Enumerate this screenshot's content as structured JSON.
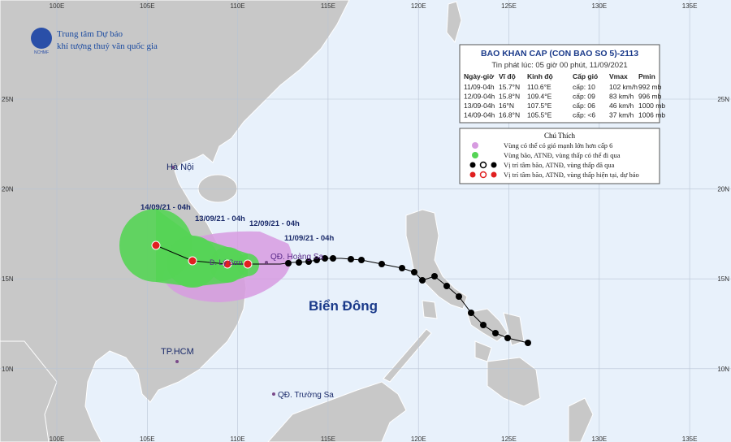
{
  "agency": {
    "line1": "Trung tâm Dự báo",
    "line2": "khí tượng thuỷ văn quốc gia",
    "logo_text": "NCHMF"
  },
  "grid_labels": {
    "longitudes": [
      "100E",
      "105E",
      "110E",
      "115E",
      "120E",
      "125E",
      "130E",
      "135E"
    ],
    "latitudes": [
      "25N",
      "20N",
      "15N",
      "10N"
    ]
  },
  "bulletin": {
    "title": "BAO KHAN CAP (CON BAO SO 5)-2113",
    "issued": "Tin phát lúc: 05 giờ 00 phút, 11/09/2021",
    "columns": [
      "Ngày-giờ",
      "Vĩ độ",
      "Kinh độ",
      "Cấp gió",
      "Vmax",
      "Pmin"
    ],
    "rows": [
      [
        "11/09-04h",
        "15.7°N",
        "110.6°E",
        "cấp: 10",
        "102 km/h",
        "992 mb"
      ],
      [
        "12/09-04h",
        "15.8°N",
        "109.4°E",
        "cấp: 09",
        "83 km/h",
        "996 mb"
      ],
      [
        "13/09-04h",
        "16°N",
        "107.5°E",
        "cấp: 06",
        "46 km/h",
        "1000 mb"
      ],
      [
        "14/09-04h",
        "16.8°N",
        "105.5°E",
        "cấp: <6",
        "37 km/h",
        "1006 mb"
      ]
    ]
  },
  "legend": {
    "title": "Chú Thích",
    "items": [
      "Vùng có thể có gió mạnh lớn hơn cấp 6",
      "Vùng bão, ATNĐ, vùng thấp có thể đi qua",
      "Vị trí tâm bão, ATNĐ, vùng thấp đã qua",
      "Vị trí tâm bão, ATNĐ, vùng thấp hiện tại, dự báo"
    ]
  },
  "places": {
    "hanoi": "Hà Nội",
    "hcm": "TP.HCM",
    "sea": "Biển Đông",
    "paracel": "QĐ. Hoàng Sa",
    "spratly": "QĐ. Trường Sa",
    "lyson": "Đ. Lý Sơn"
  },
  "timestamps": [
    "14/09/21 - 04h",
    "13/09/21 - 04h",
    "12/09/21 - 04h",
    "11/09/21 - 04h"
  ]
}
